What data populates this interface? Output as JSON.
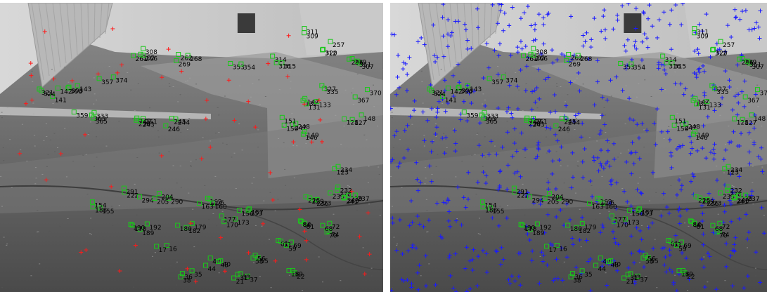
{
  "colors": {
    "inlier_box": "#19c819",
    "outlier_cross": "#ff1a1a",
    "candidate_cross": "#1a1aff",
    "label_text": "#000000",
    "divider": "#ffffff"
  },
  "panels": [
    {
      "name": "feature-matches-left",
      "shows_outliers": true,
      "shows_candidates": false
    },
    {
      "name": "feature-matches-right",
      "shows_outliers": false,
      "shows_candidates": true
    }
  ],
  "labels": {
    "ids_top": [
      "311",
      "309",
      "320",
      "257",
      "312",
      "308",
      "302",
      "261",
      "266",
      "262",
      "268",
      "269",
      "353",
      "354",
      "314",
      "315",
      "316",
      "307",
      "299",
      "296",
      "351",
      "357",
      "374",
      "303",
      "306",
      "143",
      "141",
      "142",
      "324",
      "321",
      "327",
      "335",
      "370",
      "367",
      "147",
      "132",
      "131",
      "133",
      "333",
      "359",
      "363",
      "365",
      "251",
      "250",
      "249",
      "243",
      "244",
      "245",
      "246",
      "247",
      "248",
      "150",
      "151",
      "146",
      "149",
      "148",
      "128",
      "127",
      "123"
    ],
    "ids_bottom": [
      "234",
      "233",
      "232",
      "228",
      "241",
      "240",
      "239",
      "237",
      "236",
      "223",
      "226",
      "229",
      "222",
      "294",
      "291",
      "290",
      "204",
      "205",
      "206",
      "162",
      "160",
      "163",
      "157",
      "156",
      "153",
      "154",
      "155",
      "188",
      "189",
      "190",
      "192",
      "178",
      "182",
      "180",
      "179",
      "173",
      "177",
      "170",
      "80",
      "81",
      "84",
      "74",
      "72",
      "70",
      "68",
      "69",
      "61",
      "63",
      "59",
      "58",
      "55",
      "56",
      "47",
      "44",
      "43",
      "40",
      "38",
      "36",
      "35",
      "37",
      "33",
      "31",
      "21",
      "22",
      "18",
      "19",
      "16",
      "17",
      "12",
      "13",
      "10",
      "9",
      "8",
      "7",
      "4",
      "2",
      "101",
      "119",
      "114",
      "115",
      "117",
      "202",
      "198",
      "199",
      "201",
      "208",
      "209",
      "210",
      "213"
    ]
  }
}
